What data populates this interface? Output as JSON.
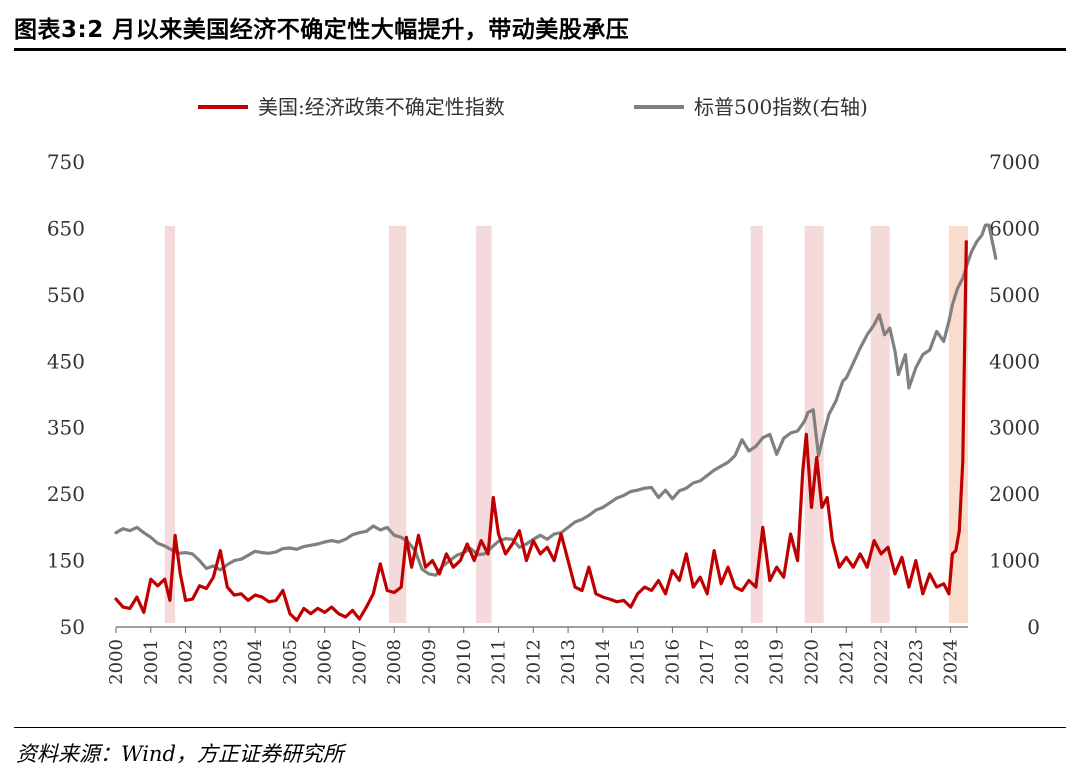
{
  "figure": {
    "title": "图表3:2 月以来美国经济不确定性大幅提升，带动美股承压",
    "source": "资料来源：Wind，方正证券研究所"
  },
  "colors": {
    "epu": "#c00000",
    "sp500": "#808080",
    "shade": "#f2d3d3",
    "shade_recent": "#f9d6c4"
  },
  "chart_data": {
    "type": "line",
    "x_range": [
      2000.0,
      2024.5
    ],
    "x_ticks": [
      "2000",
      "2001",
      "2002",
      "2003",
      "2004",
      "2005",
      "2006",
      "2007",
      "2008",
      "2009",
      "2010",
      "2011",
      "2012",
      "2013",
      "2014",
      "2015",
      "2016",
      "2017",
      "2018",
      "2019",
      "2020",
      "2021",
      "2022",
      "2023",
      "2024"
    ],
    "y_left": {
      "min": 50,
      "max": 750,
      "ticks": [
        "50",
        "150",
        "250",
        "350",
        "450",
        "550",
        "650",
        "750"
      ]
    },
    "y_right": {
      "min": 0,
      "max": 7000,
      "ticks": [
        "0",
        "1000",
        "2000",
        "3000",
        "4000",
        "5000",
        "6000",
        "7000"
      ]
    },
    "legend_position": "top",
    "shaded_periods": [
      [
        2001.4,
        2001.7
      ],
      [
        2007.85,
        2008.35
      ],
      [
        2010.35,
        2010.8
      ],
      [
        2018.25,
        2018.6
      ],
      [
        2019.8,
        2020.35
      ],
      [
        2021.7,
        2022.25
      ],
      [
        2023.95,
        2024.5
      ]
    ],
    "series": [
      {
        "name": "美国:经济政策不确定性指数",
        "axis": "left",
        "points": [
          [
            2000.0,
            92
          ],
          [
            2000.2,
            80
          ],
          [
            2000.4,
            78
          ],
          [
            2000.6,
            95
          ],
          [
            2000.8,
            72
          ],
          [
            2001.0,
            122
          ],
          [
            2001.2,
            112
          ],
          [
            2001.4,
            122
          ],
          [
            2001.55,
            90
          ],
          [
            2001.7,
            188
          ],
          [
            2001.85,
            130
          ],
          [
            2002.0,
            90
          ],
          [
            2002.2,
            92
          ],
          [
            2002.4,
            112
          ],
          [
            2002.6,
            108
          ],
          [
            2002.8,
            125
          ],
          [
            2003.0,
            165
          ],
          [
            2003.2,
            110
          ],
          [
            2003.4,
            98
          ],
          [
            2003.6,
            100
          ],
          [
            2003.8,
            90
          ],
          [
            2004.0,
            98
          ],
          [
            2004.2,
            95
          ],
          [
            2004.4,
            88
          ],
          [
            2004.6,
            90
          ],
          [
            2004.8,
            105
          ],
          [
            2005.0,
            70
          ],
          [
            2005.2,
            60
          ],
          [
            2005.4,
            78
          ],
          [
            2005.6,
            70
          ],
          [
            2005.8,
            78
          ],
          [
            2006.0,
            72
          ],
          [
            2006.2,
            80
          ],
          [
            2006.4,
            70
          ],
          [
            2006.6,
            65
          ],
          [
            2006.8,
            75
          ],
          [
            2007.0,
            62
          ],
          [
            2007.2,
            80
          ],
          [
            2007.4,
            100
          ],
          [
            2007.6,
            145
          ],
          [
            2007.8,
            105
          ],
          [
            2008.0,
            102
          ],
          [
            2008.2,
            110
          ],
          [
            2008.35,
            185
          ],
          [
            2008.5,
            140
          ],
          [
            2008.7,
            188
          ],
          [
            2008.9,
            140
          ],
          [
            2009.1,
            150
          ],
          [
            2009.3,
            130
          ],
          [
            2009.5,
            160
          ],
          [
            2009.7,
            140
          ],
          [
            2009.9,
            150
          ],
          [
            2010.1,
            175
          ],
          [
            2010.3,
            150
          ],
          [
            2010.5,
            180
          ],
          [
            2010.7,
            160
          ],
          [
            2010.85,
            245
          ],
          [
            2011.0,
            190
          ],
          [
            2011.2,
            160
          ],
          [
            2011.4,
            175
          ],
          [
            2011.6,
            195
          ],
          [
            2011.8,
            150
          ],
          [
            2012.0,
            180
          ],
          [
            2012.2,
            160
          ],
          [
            2012.4,
            170
          ],
          [
            2012.6,
            150
          ],
          [
            2012.8,
            190
          ],
          [
            2013.0,
            150
          ],
          [
            2013.2,
            110
          ],
          [
            2013.4,
            105
          ],
          [
            2013.6,
            140
          ],
          [
            2013.8,
            100
          ],
          [
            2014.0,
            95
          ],
          [
            2014.2,
            92
          ],
          [
            2014.4,
            88
          ],
          [
            2014.6,
            90
          ],
          [
            2014.8,
            80
          ],
          [
            2015.0,
            100
          ],
          [
            2015.2,
            110
          ],
          [
            2015.4,
            105
          ],
          [
            2015.6,
            120
          ],
          [
            2015.8,
            100
          ],
          [
            2016.0,
            135
          ],
          [
            2016.2,
            120
          ],
          [
            2016.4,
            160
          ],
          [
            2016.6,
            110
          ],
          [
            2016.8,
            125
          ],
          [
            2017.0,
            100
          ],
          [
            2017.2,
            165
          ],
          [
            2017.4,
            115
          ],
          [
            2017.6,
            140
          ],
          [
            2017.8,
            110
          ],
          [
            2018.0,
            105
          ],
          [
            2018.2,
            120
          ],
          [
            2018.4,
            110
          ],
          [
            2018.6,
            200
          ],
          [
            2018.8,
            120
          ],
          [
            2019.0,
            140
          ],
          [
            2019.2,
            125
          ],
          [
            2019.4,
            190
          ],
          [
            2019.6,
            150
          ],
          [
            2019.75,
            285
          ],
          [
            2019.85,
            340
          ],
          [
            2020.0,
            230
          ],
          [
            2020.15,
            305
          ],
          [
            2020.3,
            230
          ],
          [
            2020.45,
            245
          ],
          [
            2020.6,
            180
          ],
          [
            2020.8,
            140
          ],
          [
            2021.0,
            155
          ],
          [
            2021.2,
            140
          ],
          [
            2021.4,
            160
          ],
          [
            2021.6,
            140
          ],
          [
            2021.8,
            180
          ],
          [
            2022.0,
            160
          ],
          [
            2022.2,
            170
          ],
          [
            2022.4,
            130
          ],
          [
            2022.6,
            155
          ],
          [
            2022.8,
            110
          ],
          [
            2023.0,
            150
          ],
          [
            2023.2,
            100
          ],
          [
            2023.4,
            130
          ],
          [
            2023.6,
            110
          ],
          [
            2023.8,
            115
          ],
          [
            2023.95,
            100
          ],
          [
            2024.05,
            160
          ],
          [
            2024.15,
            165
          ],
          [
            2024.25,
            195
          ],
          [
            2024.35,
            300
          ],
          [
            2024.45,
            630
          ]
        ]
      },
      {
        "name": "标普500指数(右轴)",
        "axis": "right",
        "points": [
          [
            2000.0,
            1420
          ],
          [
            2000.2,
            1480
          ],
          [
            2000.4,
            1450
          ],
          [
            2000.6,
            1500
          ],
          [
            2000.8,
            1420
          ],
          [
            2001.0,
            1350
          ],
          [
            2001.2,
            1260
          ],
          [
            2001.4,
            1220
          ],
          [
            2001.6,
            1160
          ],
          [
            2001.8,
            1110
          ],
          [
            2002.0,
            1120
          ],
          [
            2002.2,
            1100
          ],
          [
            2002.4,
            1000
          ],
          [
            2002.6,
            880
          ],
          [
            2002.8,
            920
          ],
          [
            2003.0,
            860
          ],
          [
            2003.2,
            940
          ],
          [
            2003.4,
            1000
          ],
          [
            2003.6,
            1020
          ],
          [
            2003.8,
            1080
          ],
          [
            2004.0,
            1140
          ],
          [
            2004.2,
            1120
          ],
          [
            2004.4,
            1110
          ],
          [
            2004.6,
            1130
          ],
          [
            2004.8,
            1180
          ],
          [
            2005.0,
            1190
          ],
          [
            2005.2,
            1170
          ],
          [
            2005.4,
            1210
          ],
          [
            2005.6,
            1230
          ],
          [
            2005.8,
            1250
          ],
          [
            2006.0,
            1280
          ],
          [
            2006.2,
            1300
          ],
          [
            2006.4,
            1280
          ],
          [
            2006.6,
            1320
          ],
          [
            2006.8,
            1390
          ],
          [
            2007.0,
            1420
          ],
          [
            2007.2,
            1440
          ],
          [
            2007.4,
            1520
          ],
          [
            2007.6,
            1460
          ],
          [
            2007.8,
            1500
          ],
          [
            2008.0,
            1380
          ],
          [
            2008.2,
            1350
          ],
          [
            2008.4,
            1280
          ],
          [
            2008.6,
            1150
          ],
          [
            2008.8,
            870
          ],
          [
            2009.0,
            800
          ],
          [
            2009.2,
            780
          ],
          [
            2009.4,
            920
          ],
          [
            2009.6,
            1000
          ],
          [
            2009.8,
            1080
          ],
          [
            2010.0,
            1120
          ],
          [
            2010.2,
            1180
          ],
          [
            2010.4,
            1090
          ],
          [
            2010.6,
            1100
          ],
          [
            2010.8,
            1200
          ],
          [
            2011.0,
            1290
          ],
          [
            2011.2,
            1330
          ],
          [
            2011.4,
            1320
          ],
          [
            2011.6,
            1200
          ],
          [
            2011.8,
            1250
          ],
          [
            2012.0,
            1320
          ],
          [
            2012.2,
            1380
          ],
          [
            2012.4,
            1320
          ],
          [
            2012.6,
            1400
          ],
          [
            2012.8,
            1420
          ],
          [
            2013.0,
            1500
          ],
          [
            2013.2,
            1580
          ],
          [
            2013.4,
            1620
          ],
          [
            2013.6,
            1680
          ],
          [
            2013.8,
            1760
          ],
          [
            2014.0,
            1800
          ],
          [
            2014.2,
            1870
          ],
          [
            2014.4,
            1940
          ],
          [
            2014.6,
            1980
          ],
          [
            2014.8,
            2040
          ],
          [
            2015.0,
            2060
          ],
          [
            2015.2,
            2090
          ],
          [
            2015.4,
            2100
          ],
          [
            2015.6,
            1950
          ],
          [
            2015.8,
            2060
          ],
          [
            2016.0,
            1930
          ],
          [
            2016.2,
            2050
          ],
          [
            2016.4,
            2090
          ],
          [
            2016.6,
            2170
          ],
          [
            2016.8,
            2200
          ],
          [
            2017.0,
            2280
          ],
          [
            2017.2,
            2360
          ],
          [
            2017.4,
            2420
          ],
          [
            2017.6,
            2480
          ],
          [
            2017.8,
            2580
          ],
          [
            2018.0,
            2820
          ],
          [
            2018.2,
            2650
          ],
          [
            2018.4,
            2720
          ],
          [
            2018.6,
            2850
          ],
          [
            2018.8,
            2900
          ],
          [
            2019.0,
            2600
          ],
          [
            2019.2,
            2840
          ],
          [
            2019.4,
            2920
          ],
          [
            2019.6,
            2950
          ],
          [
            2019.8,
            3100
          ],
          [
            2019.9,
            3230
          ],
          [
            2020.05,
            3270
          ],
          [
            2020.2,
            2580
          ],
          [
            2020.35,
            2900
          ],
          [
            2020.5,
            3200
          ],
          [
            2020.7,
            3400
          ],
          [
            2020.9,
            3700
          ],
          [
            2021.0,
            3750
          ],
          [
            2021.2,
            3970
          ],
          [
            2021.4,
            4200
          ],
          [
            2021.6,
            4400
          ],
          [
            2021.8,
            4550
          ],
          [
            2021.95,
            4700
          ],
          [
            2022.1,
            4400
          ],
          [
            2022.25,
            4500
          ],
          [
            2022.4,
            4150
          ],
          [
            2022.5,
            3800
          ],
          [
            2022.7,
            4100
          ],
          [
            2022.8,
            3600
          ],
          [
            2023.0,
            3900
          ],
          [
            2023.2,
            4100
          ],
          [
            2023.4,
            4170
          ],
          [
            2023.6,
            4450
          ],
          [
            2023.8,
            4300
          ],
          [
            2023.95,
            4600
          ],
          [
            2024.05,
            4850
          ],
          [
            2024.2,
            5100
          ],
          [
            2024.35,
            5250
          ],
          [
            2024.5,
            5500
          ],
          [
            2024.6,
            5650
          ],
          [
            2024.75,
            5800
          ],
          [
            2024.9,
            5900
          ],
          [
            2025.0,
            6050
          ],
          [
            2025.1,
            6050
          ],
          [
            2025.2,
            5800
          ],
          [
            2025.3,
            5550
          ]
        ]
      }
    ]
  }
}
